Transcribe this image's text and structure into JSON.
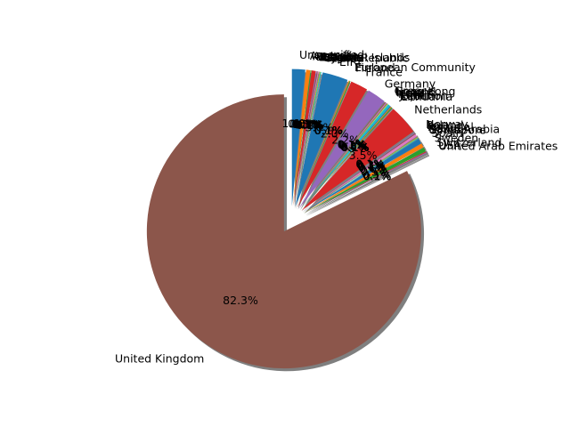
{
  "chart_data": {
    "type": "pie",
    "title": "",
    "start_angle_deg": 90,
    "direction": "clockwise",
    "shadow": true,
    "explode": 0.1,
    "autopct_format": "{:.1f}%",
    "slices": [
      {
        "label": "Unspecified",
        "value": 1.6,
        "color": "#1f77b4"
      },
      {
        "label": "Australia",
        "value": 0.5,
        "color": "#ff7f0e"
      },
      {
        "label": "Austria",
        "value": 0.1,
        "color": "#2ca02c"
      },
      {
        "label": "Bahrain",
        "value": 0.5,
        "color": "#d62728"
      },
      {
        "label": "Belgium",
        "value": 0.1,
        "color": "#9467bd"
      },
      {
        "label": "Brazil",
        "value": 0.1,
        "color": "#8c564b"
      },
      {
        "label": "Canada",
        "value": 0.1,
        "color": "#e377c2"
      },
      {
        "label": "Channel Islands",
        "value": 0.1,
        "color": "#7f7f7f"
      },
      {
        "label": "Cyprus",
        "value": 0.1,
        "color": "#bcbd22"
      },
      {
        "label": "Czech Republic",
        "value": 0.1,
        "color": "#17becf"
      },
      {
        "label": "EIRE",
        "value": 3.1,
        "color": "#1f77b4"
      },
      {
        "label": "European Community",
        "value": 0.1,
        "color": "#ff7f0e"
      },
      {
        "label": "Finland",
        "value": 0.1,
        "color": "#2ca02c"
      },
      {
        "label": "France",
        "value": 2.1,
        "color": "#d62728"
      },
      {
        "label": "Germany",
        "value": 2.3,
        "color": "#9467bd"
      },
      {
        "label": "Greece",
        "value": 0.1,
        "color": "#8c564b"
      },
      {
        "label": "Hong Kong",
        "value": 0.1,
        "color": "#e377c2"
      },
      {
        "label": "Iceland",
        "value": 0.1,
        "color": "#7f7f7f"
      },
      {
        "label": "Israel",
        "value": 0.1,
        "color": "#bcbd22"
      },
      {
        "label": "Italy",
        "value": 0.3,
        "color": "#17becf"
      },
      {
        "label": "Japan",
        "value": 0.1,
        "color": "#1f77b4"
      },
      {
        "label": "Lebanon",
        "value": 0.1,
        "color": "#ff7f0e"
      },
      {
        "label": "Lithuania",
        "value": 0.1,
        "color": "#2ca02c"
      },
      {
        "label": "Netherlands",
        "value": 3.6,
        "color": "#d62728"
      },
      {
        "label": "Norway",
        "value": 0.1,
        "color": "#9467bd"
      },
      {
        "label": "Poland",
        "value": 0.1,
        "color": "#8c564b"
      },
      {
        "label": "Portugal",
        "value": 0.3,
        "color": "#e377c2"
      },
      {
        "label": "RSA",
        "value": 0.1,
        "color": "#7f7f7f"
      },
      {
        "label": "Saudi Arabia",
        "value": 0.1,
        "color": "#bcbd22"
      },
      {
        "label": "Singapore",
        "value": 0.1,
        "color": "#17becf"
      },
      {
        "label": "Spain",
        "value": 0.6,
        "color": "#1f77b4"
      },
      {
        "label": "Sweden",
        "value": 0.5,
        "color": "#ff7f0e"
      },
      {
        "label": "Switzerland",
        "value": 0.5,
        "color": "#2ca02c"
      },
      {
        "label": "USA",
        "value": 0.1,
        "color": "#d62728"
      },
      {
        "label": "United Arab Emirates",
        "value": 0.1,
        "color": "#9467bd"
      },
      {
        "label": "United Kingdom",
        "value": 84.5,
        "color": "#8c564b"
      }
    ]
  }
}
